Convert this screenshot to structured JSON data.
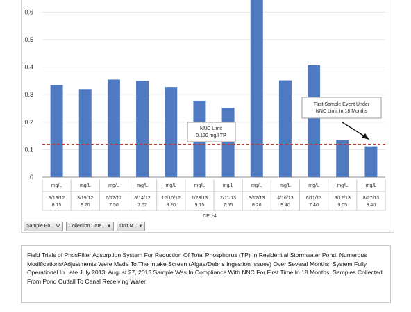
{
  "chart_data": {
    "type": "bar",
    "categories": [
      {
        "unit": "mg/L",
        "date": "3/13/12",
        "time": "8:15"
      },
      {
        "unit": "mg/L",
        "date": "3/19/12",
        "time": "8:20"
      },
      {
        "unit": "mg/L",
        "date": "6/12/12",
        "time": "7:50"
      },
      {
        "unit": "mg/L",
        "date": "8/14/12",
        "time": "7:52"
      },
      {
        "unit": "mg/L",
        "date": "12/10/12",
        "time": "8:20"
      },
      {
        "unit": "mg/L",
        "date": "1/23/13",
        "time": "9:15"
      },
      {
        "unit": "mg/L",
        "date": "2/11/13",
        "time": "7:55"
      },
      {
        "unit": "mg/L",
        "date": "3/12/13",
        "time": "8:20"
      },
      {
        "unit": "mg/L",
        "date": "4/16/13",
        "time": "9:40"
      },
      {
        "unit": "mg/L",
        "date": "6/11/13",
        "time": "7:40"
      },
      {
        "unit": "mg/L",
        "date": "8/12/13",
        "time": "9:05"
      },
      {
        "unit": "mg/L",
        "date": "8/27/13",
        "time": "8:40"
      }
    ],
    "values": [
      0.335,
      0.32,
      0.355,
      0.35,
      0.328,
      0.278,
      0.252,
      0.66,
      0.352,
      0.407,
      0.135,
      0.112
    ],
    "series_label": "CEL-4",
    "yticks": [
      "0",
      "0.1",
      "0.2",
      "0.3",
      "0.4",
      "0.5",
      "0.6"
    ],
    "ylim": [
      0,
      0.65
    ],
    "bar_color": "#4f7ac1",
    "reference_line": {
      "value": 0.12,
      "color": "#c0392b",
      "style": "dashed"
    },
    "annotations": [
      {
        "lines": [
          "NNC Limit",
          "0.120 mg/l TP"
        ]
      },
      {
        "lines": [
          "First Sample Event Under",
          "NNC Limit In 18 Months"
        ]
      }
    ]
  },
  "controls": {
    "sample_point": "Sample Po...",
    "collection_date": "Collection Date...",
    "unit": "Unit N..."
  },
  "caption": "Field Trials of PhosFilter Adsorption System For Reduction Of Total Phosphorus (TP) In Residential Stormwater Pond. Numerous Modifications/Adjustments Were Made To The Intake Screen (Algae/Debris Ingestion Issues) Over Several Months. System Fully Operational In Late July 2013. August 27, 2013 Sample Was In Compliance With NNC For First Time In 18 Months. Samples Collected From Pond Outfall To Canal Receiving Water."
}
